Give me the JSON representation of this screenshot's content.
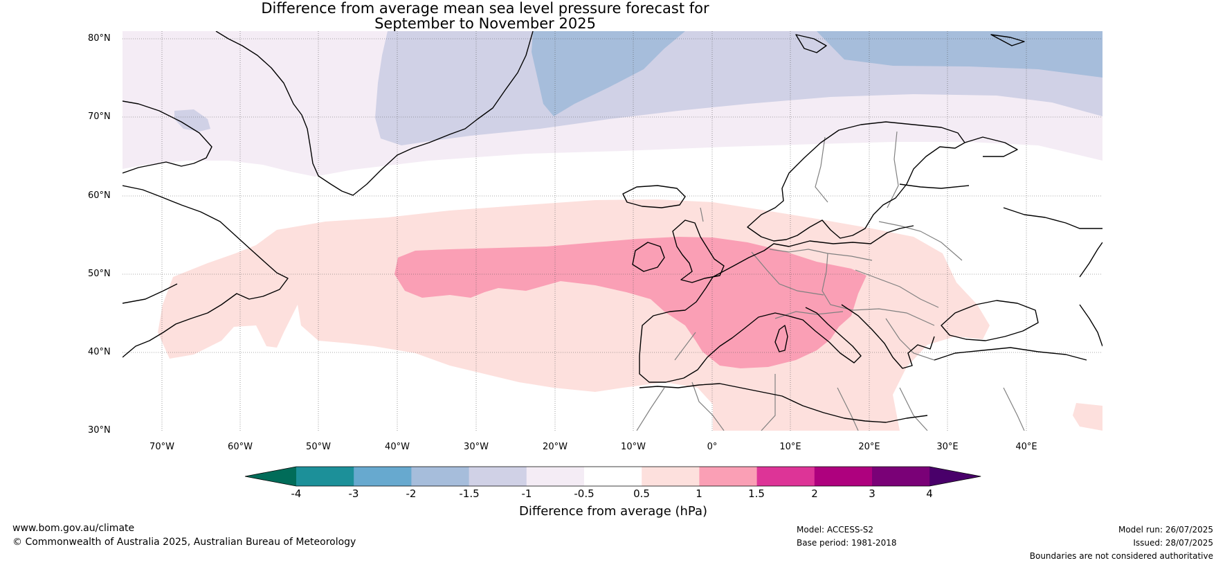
{
  "title": {
    "line1": "Difference from average mean sea level pressure forecast for",
    "line2": "September to November 2025"
  },
  "map": {
    "lat_labels": [
      "80°N",
      "70°N",
      "60°N",
      "50°N",
      "40°N",
      "30°N"
    ],
    "lon_labels": [
      "70°W",
      "60°W",
      "50°W",
      "40°W",
      "30°W",
      "20°W",
      "10°W",
      "0°",
      "10°E",
      "20°E",
      "30°E",
      "40°E"
    ],
    "extent": {
      "lon_min": -75,
      "lon_max": 50,
      "lat_min": 30,
      "lat_max": 81
    },
    "colors": {
      "neg_1": "#f4ecf5",
      "neg_1_5": "#d0d1e6",
      "neg_2": "#a6bddb",
      "pos_0_5": "#fde0dd",
      "pos_1": "#fa9fb5",
      "coastline": "#000000",
      "borders": "#808080"
    }
  },
  "colorbar": {
    "ticks": [
      "-4",
      "-3",
      "-2",
      "-1.5",
      "-1",
      "-0.5",
      "0.5",
      "1",
      "1.5",
      "2",
      "3",
      "4"
    ],
    "colors": [
      "#016c59",
      "#1c9099",
      "#67a9cf",
      "#a6bddb",
      "#d0d1e6",
      "#f4ecf5",
      "#ffffff",
      "#fde0dd",
      "#fa9fb5",
      "#dd3497",
      "#ae017e",
      "#7a0177",
      "#49006a"
    ],
    "label": "Difference from average (hPa)"
  },
  "footer": {
    "website": "www.bom.gov.au/climate",
    "copyright": "© Commonwealth of Australia 2025, Australian Bureau of Meteorology",
    "model": "Model: ACCESS-S2",
    "base_period": "Base period: 1981-2018",
    "model_run": "Model run: 26/07/2025",
    "issued": "Issued: 28/07/2025",
    "disclaimer": "Boundaries are not considered authoritative"
  }
}
